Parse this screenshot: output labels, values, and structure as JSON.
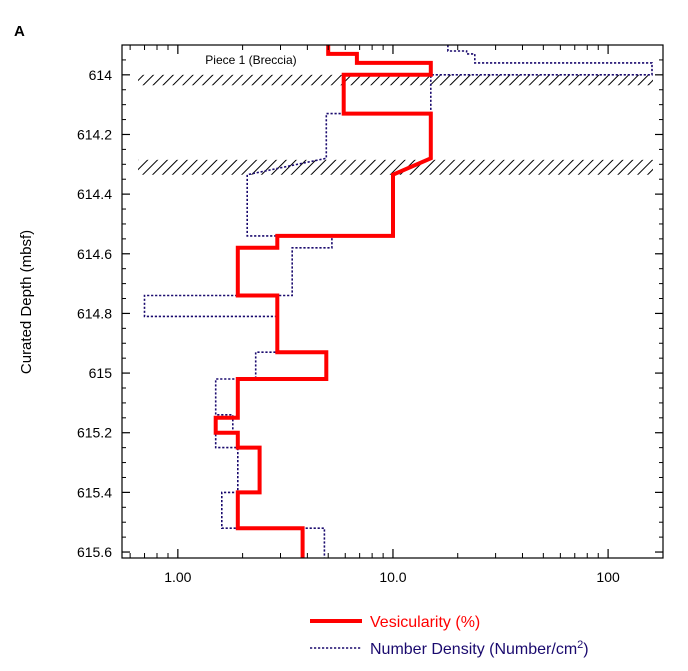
{
  "panel_label": "A",
  "chart_data": {
    "type": "line",
    "title": "",
    "xlabel": "",
    "ylabel": "Curated Depth (mbsf)",
    "x_scale": "log",
    "x_axis_range": [
      0.55,
      180
    ],
    "y_axis_range": [
      613.9,
      615.62
    ],
    "y_inverted": true,
    "grid": false,
    "legend_position": "bottom",
    "x_tick_labels": [
      {
        "value": 1,
        "label": "1.00"
      },
      {
        "value": 10,
        "label": "10.0"
      },
      {
        "value": 100,
        "label": "100"
      }
    ],
    "y_tick_labels": [
      {
        "value": 614.0,
        "label": "614"
      },
      {
        "value": 614.2,
        "label": "614.2"
      },
      {
        "value": 614.4,
        "label": "614.4"
      },
      {
        "value": 614.6,
        "label": "614.6"
      },
      {
        "value": 614.8,
        "label": "614.8"
      },
      {
        "value": 615.0,
        "label": "615"
      },
      {
        "value": 615.2,
        "label": "615.2"
      },
      {
        "value": 615.4,
        "label": "615.4"
      },
      {
        "value": 615.6,
        "label": "615.6"
      }
    ],
    "annotation": {
      "text": "Piece 1 (Breccia)",
      "x": 10,
      "y": 613.95
    },
    "hatched_intervals": [
      {
        "y_top": 614.0,
        "y_bottom": 614.035
      },
      {
        "y_top": 614.285,
        "y_bottom": 614.335
      }
    ],
    "series": [
      {
        "name": "Vesicularity (%)",
        "color": "#ff0000",
        "style": "solid",
        "points": [
          [
            5,
            613.9
          ],
          [
            5,
            613.93
          ],
          [
            6.8,
            613.93
          ],
          [
            6.8,
            613.96
          ],
          [
            15,
            613.96
          ],
          [
            15,
            614.0
          ],
          [
            5.9,
            614.0
          ],
          [
            5.9,
            614.13
          ],
          [
            15,
            614.13
          ],
          [
            15,
            614.28
          ],
          [
            10,
            614.335
          ],
          [
            10,
            614.54
          ],
          [
            2.9,
            614.54
          ],
          [
            2.9,
            614.58
          ],
          [
            1.9,
            614.58
          ],
          [
            1.9,
            614.74
          ],
          [
            2.9,
            614.74
          ],
          [
            2.9,
            614.93
          ],
          [
            4.9,
            614.93
          ],
          [
            4.9,
            615.02
          ],
          [
            1.9,
            615.02
          ],
          [
            1.9,
            615.15
          ],
          [
            1.5,
            615.15
          ],
          [
            1.5,
            615.2
          ],
          [
            1.9,
            615.2
          ],
          [
            1.9,
            615.25
          ],
          [
            2.4,
            615.25
          ],
          [
            2.4,
            615.4
          ],
          [
            1.9,
            615.4
          ],
          [
            1.9,
            615.52
          ],
          [
            3.8,
            615.52
          ],
          [
            3.8,
            615.62
          ]
        ]
      },
      {
        "name": "Number Density (Number/cm²)",
        "color": "#1a0a6e",
        "style": "dotted",
        "points": [
          [
            18,
            613.9
          ],
          [
            18,
            613.92
          ],
          [
            22,
            613.92
          ],
          [
            22,
            613.93
          ],
          [
            24,
            613.93
          ],
          [
            24,
            613.96
          ],
          [
            160,
            613.96
          ],
          [
            160,
            614.0
          ],
          [
            15,
            614.0
          ],
          [
            15,
            614.13
          ],
          [
            4.9,
            614.13
          ],
          [
            4.9,
            614.28
          ],
          [
            2.1,
            614.335
          ],
          [
            2.1,
            614.54
          ],
          [
            5.2,
            614.54
          ],
          [
            5.2,
            614.58
          ],
          [
            3.4,
            614.58
          ],
          [
            3.4,
            614.74
          ],
          [
            0.7,
            614.74
          ],
          [
            0.7,
            614.81
          ],
          [
            2.9,
            614.81
          ],
          [
            2.9,
            614.93
          ],
          [
            2.3,
            614.93
          ],
          [
            2.3,
            615.02
          ],
          [
            1.5,
            615.02
          ],
          [
            1.5,
            615.14
          ],
          [
            1.8,
            615.14
          ],
          [
            1.8,
            615.2
          ],
          [
            1.5,
            615.2
          ],
          [
            1.5,
            615.25
          ],
          [
            1.9,
            615.25
          ],
          [
            1.9,
            615.4
          ],
          [
            1.6,
            615.4
          ],
          [
            1.6,
            615.52
          ],
          [
            4.8,
            615.52
          ],
          [
            4.8,
            615.62
          ]
        ]
      }
    ],
    "legend": [
      {
        "label_main": "Vesicularity (%)",
        "label_suffix": "",
        "label_close": "",
        "color": "#ff0000",
        "style": "solid"
      },
      {
        "label_main": "Number Density (Number/cm",
        "label_suffix": "2",
        "label_close": ")",
        "color": "#1a0a6e",
        "style": "dotted"
      }
    ]
  }
}
